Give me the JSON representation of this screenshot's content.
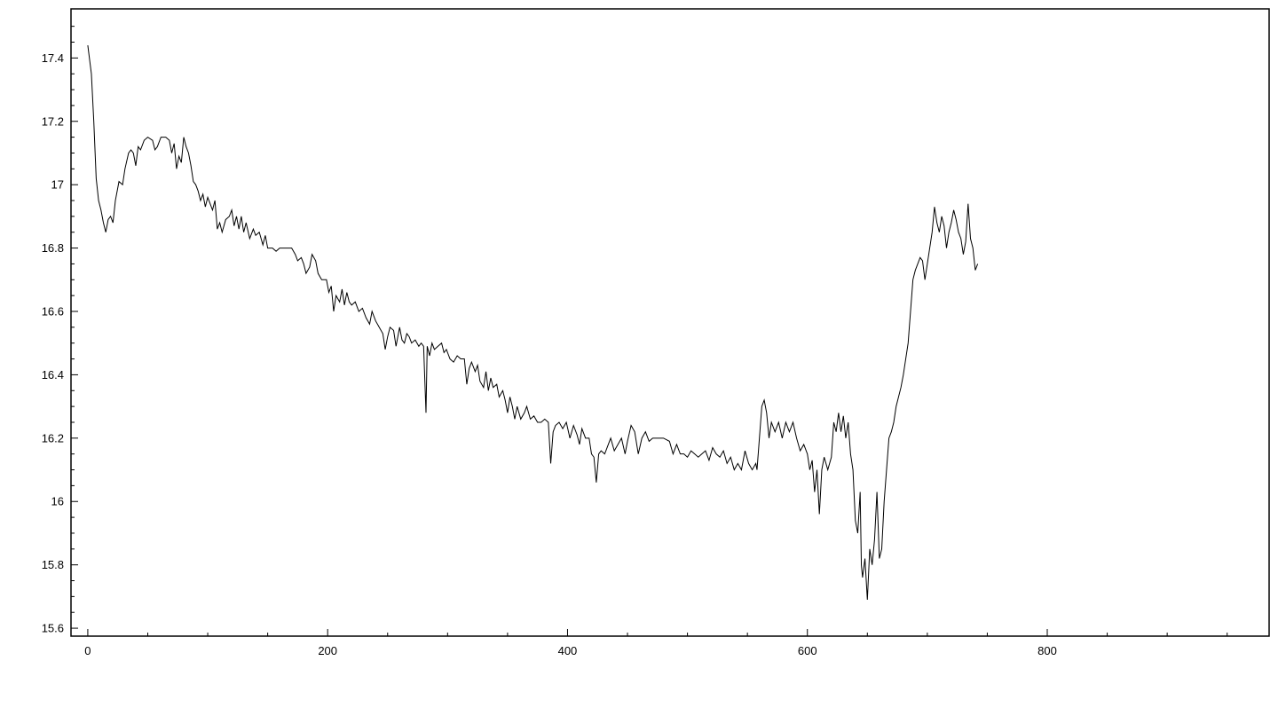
{
  "chart_data": {
    "type": "line",
    "title": "",
    "xlabel": "",
    "ylabel": "",
    "xlim": [
      -14,
      985
    ],
    "ylim": [
      15.575,
      17.555
    ],
    "grid": false,
    "legend": "none",
    "x_ticks": [
      0,
      200,
      400,
      600,
      800
    ],
    "x_tick_labels": [
      "0",
      "200",
      "400",
      "600",
      "800"
    ],
    "y_ticks": [
      15.6,
      15.8,
      16,
      16.2,
      16.4,
      16.6,
      16.8,
      17,
      17.2,
      17.4
    ],
    "y_tick_labels": [
      "15.6",
      "15.8",
      "16",
      "16.2",
      "16.4",
      "16.6",
      "16.8",
      "17",
      "17.2",
      "17.4"
    ],
    "series": [
      {
        "name": "series",
        "color": "#000000",
        "points": [
          [
            0,
            17.44
          ],
          [
            3,
            17.35
          ],
          [
            5,
            17.2
          ],
          [
            7,
            17.02
          ],
          [
            9,
            16.95
          ],
          [
            11,
            16.92
          ],
          [
            13,
            16.88
          ],
          [
            15,
            16.85
          ],
          [
            17,
            16.89
          ],
          [
            19,
            16.9
          ],
          [
            21,
            16.88
          ],
          [
            23,
            16.95
          ],
          [
            26,
            17.01
          ],
          [
            29,
            17.0
          ],
          [
            31,
            17.05
          ],
          [
            34,
            17.1
          ],
          [
            36,
            17.11
          ],
          [
            38,
            17.1
          ],
          [
            40,
            17.06
          ],
          [
            42,
            17.12
          ],
          [
            44,
            17.11
          ],
          [
            47,
            17.14
          ],
          [
            50,
            17.15
          ],
          [
            54,
            17.14
          ],
          [
            56,
            17.11
          ],
          [
            58,
            17.12
          ],
          [
            61,
            17.15
          ],
          [
            65,
            17.15
          ],
          [
            68,
            17.14
          ],
          [
            70,
            17.1
          ],
          [
            72,
            17.13
          ],
          [
            74,
            17.05
          ],
          [
            76,
            17.09
          ],
          [
            78,
            17.07
          ],
          [
            80,
            17.15
          ],
          [
            82,
            17.12
          ],
          [
            84,
            17.1
          ],
          [
            86,
            17.06
          ],
          [
            88,
            17.01
          ],
          [
            90,
            17.0
          ],
          [
            92,
            16.98
          ],
          [
            94,
            16.95
          ],
          [
            96,
            16.97
          ],
          [
            98,
            16.93
          ],
          [
            100,
            16.96
          ],
          [
            102,
            16.94
          ],
          [
            104,
            16.92
          ],
          [
            106,
            16.95
          ],
          [
            108,
            16.86
          ],
          [
            110,
            16.88
          ],
          [
            112,
            16.85
          ],
          [
            115,
            16.89
          ],
          [
            118,
            16.9
          ],
          [
            120,
            16.92
          ],
          [
            122,
            16.87
          ],
          [
            124,
            16.9
          ],
          [
            126,
            16.86
          ],
          [
            128,
            16.9
          ],
          [
            130,
            16.85
          ],
          [
            132,
            16.88
          ],
          [
            135,
            16.83
          ],
          [
            138,
            16.86
          ],
          [
            140,
            16.84
          ],
          [
            143,
            16.85
          ],
          [
            146,
            16.81
          ],
          [
            148,
            16.84
          ],
          [
            150,
            16.8
          ],
          [
            154,
            16.8
          ],
          [
            157,
            16.79
          ],
          [
            160,
            16.8
          ],
          [
            165,
            16.8
          ],
          [
            170,
            16.8
          ],
          [
            173,
            16.78
          ],
          [
            175,
            16.76
          ],
          [
            178,
            16.77
          ],
          [
            180,
            16.75
          ],
          [
            182,
            16.72
          ],
          [
            185,
            16.74
          ],
          [
            187,
            16.78
          ],
          [
            190,
            16.76
          ],
          [
            192,
            16.72
          ],
          [
            195,
            16.7
          ],
          [
            199,
            16.7
          ],
          [
            201,
            16.66
          ],
          [
            203,
            16.68
          ],
          [
            205,
            16.6
          ],
          [
            207,
            16.65
          ],
          [
            210,
            16.63
          ],
          [
            212,
            16.67
          ],
          [
            214,
            16.62
          ],
          [
            216,
            16.66
          ],
          [
            218,
            16.63
          ],
          [
            220,
            16.62
          ],
          [
            223,
            16.63
          ],
          [
            226,
            16.6
          ],
          [
            229,
            16.61
          ],
          [
            232,
            16.58
          ],
          [
            235,
            16.56
          ],
          [
            237,
            16.6
          ],
          [
            240,
            16.57
          ],
          [
            243,
            16.55
          ],
          [
            246,
            16.53
          ],
          [
            248,
            16.48
          ],
          [
            250,
            16.52
          ],
          [
            252,
            16.55
          ],
          [
            255,
            16.54
          ],
          [
            257,
            16.49
          ],
          [
            260,
            16.55
          ],
          [
            262,
            16.51
          ],
          [
            264,
            16.5
          ],
          [
            266,
            16.53
          ],
          [
            268,
            16.52
          ],
          [
            270,
            16.5
          ],
          [
            273,
            16.51
          ],
          [
            276,
            16.49
          ],
          [
            278,
            16.5
          ],
          [
            280,
            16.49
          ],
          [
            282,
            16.28
          ],
          [
            283,
            16.49
          ],
          [
            285,
            16.46
          ],
          [
            287,
            16.5
          ],
          [
            289,
            16.48
          ],
          [
            292,
            16.49
          ],
          [
            295,
            16.5
          ],
          [
            297,
            16.47
          ],
          [
            299,
            16.48
          ],
          [
            302,
            16.45
          ],
          [
            305,
            16.44
          ],
          [
            308,
            16.46
          ],
          [
            311,
            16.45
          ],
          [
            314,
            16.45
          ],
          [
            316,
            16.37
          ],
          [
            318,
            16.42
          ],
          [
            320,
            16.44
          ],
          [
            323,
            16.41
          ],
          [
            325,
            16.43
          ],
          [
            327,
            16.38
          ],
          [
            330,
            16.36
          ],
          [
            332,
            16.41
          ],
          [
            334,
            16.35
          ],
          [
            336,
            16.39
          ],
          [
            338,
            16.36
          ],
          [
            341,
            16.37
          ],
          [
            343,
            16.33
          ],
          [
            346,
            16.35
          ],
          [
            348,
            16.32
          ],
          [
            350,
            16.28
          ],
          [
            352,
            16.33
          ],
          [
            354,
            16.3
          ],
          [
            356,
            16.26
          ],
          [
            358,
            16.3
          ],
          [
            361,
            16.26
          ],
          [
            364,
            16.28
          ],
          [
            366,
            16.3
          ],
          [
            369,
            16.26
          ],
          [
            372,
            16.27
          ],
          [
            375,
            16.25
          ],
          [
            378,
            16.25
          ],
          [
            381,
            16.26
          ],
          [
            384,
            16.25
          ],
          [
            386,
            16.12
          ],
          [
            388,
            16.22
          ],
          [
            390,
            16.24
          ],
          [
            393,
            16.25
          ],
          [
            396,
            16.23
          ],
          [
            399,
            16.25
          ],
          [
            402,
            16.2
          ],
          [
            405,
            16.24
          ],
          [
            408,
            16.21
          ],
          [
            410,
            16.18
          ],
          [
            412,
            16.23
          ],
          [
            415,
            16.2
          ],
          [
            418,
            16.2
          ],
          [
            420,
            16.15
          ],
          [
            422,
            16.14
          ],
          [
            424,
            16.06
          ],
          [
            426,
            16.15
          ],
          [
            428,
            16.16
          ],
          [
            431,
            16.15
          ],
          [
            434,
            16.18
          ],
          [
            436,
            16.2
          ],
          [
            439,
            16.16
          ],
          [
            442,
            16.18
          ],
          [
            445,
            16.2
          ],
          [
            448,
            16.15
          ],
          [
            450,
            16.19
          ],
          [
            453,
            16.24
          ],
          [
            456,
            16.22
          ],
          [
            459,
            16.15
          ],
          [
            462,
            16.2
          ],
          [
            465,
            16.22
          ],
          [
            468,
            16.19
          ],
          [
            471,
            16.2
          ],
          [
            475,
            16.2
          ],
          [
            480,
            16.2
          ],
          [
            485,
            16.19
          ],
          [
            488,
            16.15
          ],
          [
            491,
            16.18
          ],
          [
            494,
            16.15
          ],
          [
            497,
            16.15
          ],
          [
            500,
            16.14
          ],
          [
            503,
            16.16
          ],
          [
            506,
            16.15
          ],
          [
            509,
            16.14
          ],
          [
            512,
            16.15
          ],
          [
            515,
            16.16
          ],
          [
            518,
            16.13
          ],
          [
            521,
            16.17
          ],
          [
            524,
            16.15
          ],
          [
            527,
            16.14
          ],
          [
            530,
            16.16
          ],
          [
            533,
            16.12
          ],
          [
            536,
            16.14
          ],
          [
            539,
            16.1
          ],
          [
            542,
            16.12
          ],
          [
            545,
            16.1
          ],
          [
            548,
            16.16
          ],
          [
            551,
            16.12
          ],
          [
            554,
            16.1
          ],
          [
            557,
            16.12
          ],
          [
            558,
            16.1
          ],
          [
            560,
            16.2
          ],
          [
            562,
            16.3
          ],
          [
            564,
            16.32
          ],
          [
            566,
            16.28
          ],
          [
            568,
            16.2
          ],
          [
            570,
            16.25
          ],
          [
            573,
            16.22
          ],
          [
            576,
            16.25
          ],
          [
            579,
            16.2
          ],
          [
            582,
            16.25
          ],
          [
            585,
            16.22
          ],
          [
            588,
            16.25
          ],
          [
            591,
            16.2
          ],
          [
            594,
            16.16
          ],
          [
            597,
            16.18
          ],
          [
            600,
            16.15
          ],
          [
            602,
            16.1
          ],
          [
            604,
            16.13
          ],
          [
            606,
            16.03
          ],
          [
            608,
            16.1
          ],
          [
            610,
            15.96
          ],
          [
            612,
            16.1
          ],
          [
            614,
            16.14
          ],
          [
            617,
            16.1
          ],
          [
            620,
            16.14
          ],
          [
            622,
            16.25
          ],
          [
            624,
            16.22
          ],
          [
            626,
            16.28
          ],
          [
            628,
            16.22
          ],
          [
            630,
            16.27
          ],
          [
            632,
            16.2
          ],
          [
            634,
            16.25
          ],
          [
            636,
            16.15
          ],
          [
            638,
            16.1
          ],
          [
            640,
            15.94
          ],
          [
            642,
            15.9
          ],
          [
            644,
            16.03
          ],
          [
            645,
            15.8
          ],
          [
            646,
            15.76
          ],
          [
            648,
            15.82
          ],
          [
            650,
            15.69
          ],
          [
            652,
            15.85
          ],
          [
            654,
            15.8
          ],
          [
            656,
            15.88
          ],
          [
            658,
            16.03
          ],
          [
            660,
            15.82
          ],
          [
            662,
            15.85
          ],
          [
            664,
            16.0
          ],
          [
            666,
            16.1
          ],
          [
            668,
            16.2
          ],
          [
            670,
            16.22
          ],
          [
            672,
            16.25
          ],
          [
            674,
            16.3
          ],
          [
            676,
            16.33
          ],
          [
            678,
            16.36
          ],
          [
            680,
            16.4
          ],
          [
            682,
            16.45
          ],
          [
            684,
            16.5
          ],
          [
            686,
            16.6
          ],
          [
            688,
            16.7
          ],
          [
            690,
            16.73
          ],
          [
            692,
            16.75
          ],
          [
            694,
            16.77
          ],
          [
            696,
            16.76
          ],
          [
            698,
            16.7
          ],
          [
            700,
            16.75
          ],
          [
            702,
            16.8
          ],
          [
            704,
            16.85
          ],
          [
            706,
            16.93
          ],
          [
            708,
            16.88
          ],
          [
            710,
            16.85
          ],
          [
            712,
            16.9
          ],
          [
            714,
            16.87
          ],
          [
            716,
            16.8
          ],
          [
            718,
            16.85
          ],
          [
            720,
            16.88
          ],
          [
            722,
            16.92
          ],
          [
            724,
            16.89
          ],
          [
            726,
            16.85
          ],
          [
            728,
            16.83
          ],
          [
            730,
            16.78
          ],
          [
            732,
            16.82
          ],
          [
            734,
            16.94
          ],
          [
            736,
            16.83
          ],
          [
            738,
            16.8
          ],
          [
            740,
            16.73
          ],
          [
            742,
            16.75
          ]
        ]
      }
    ]
  }
}
